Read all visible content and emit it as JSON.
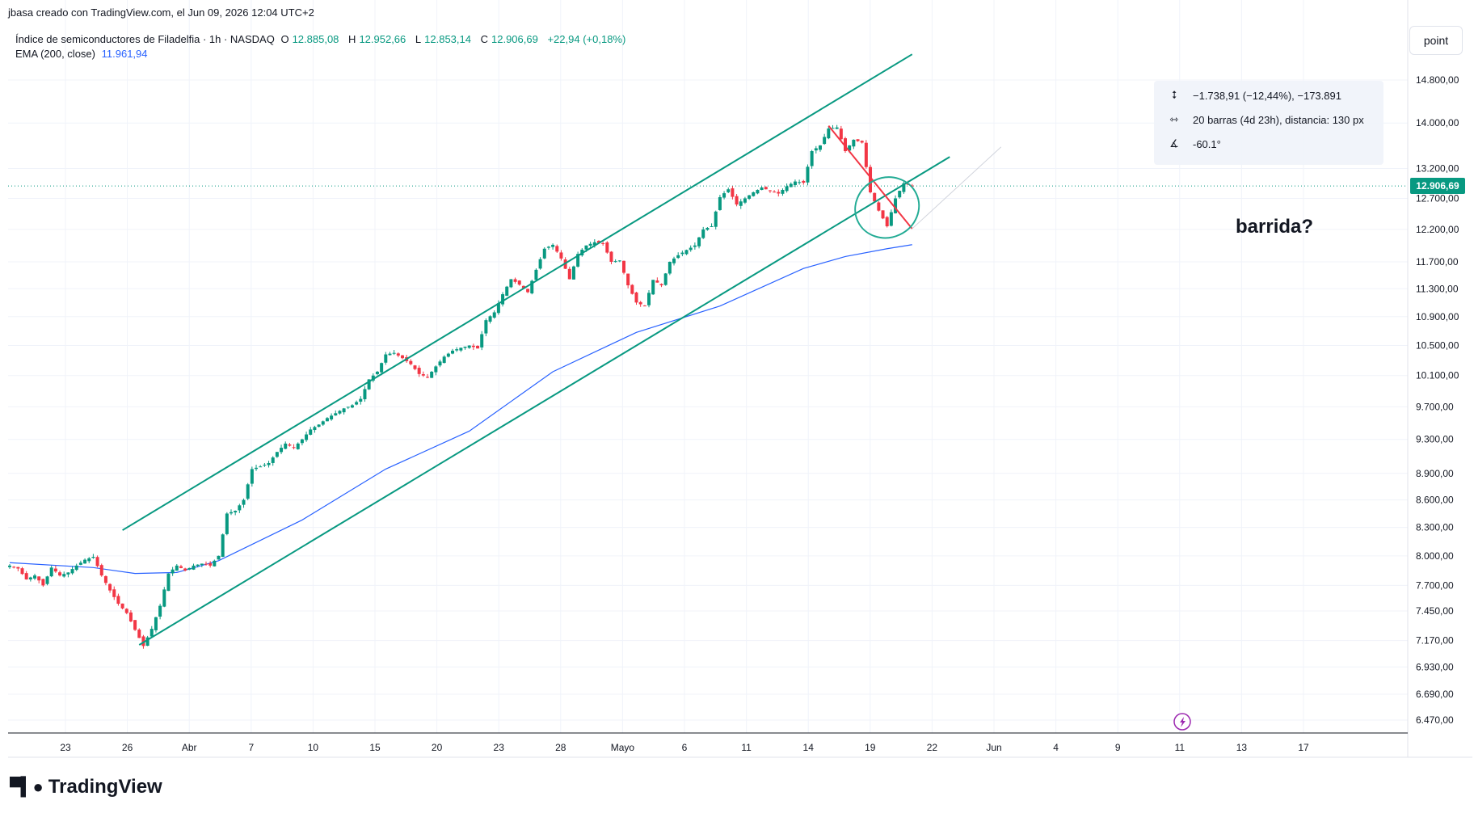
{
  "header": {
    "credit": "jbasa creado con TradingView.com, el Jun 09, 2026 12:04 UTC+2"
  },
  "legend": {
    "symbol": "Índice de semiconductores de Filadelfia · 1h · NASDAQ",
    "o_label": "O",
    "o": "12.885,08",
    "h_label": "H",
    "h": "12.952,66",
    "l_label": "L",
    "l": "12.853,14",
    "c_label": "C",
    "c": "12.906,69",
    "change": "+22,94 (+0,18%)",
    "ema_label": "EMA (200, close)",
    "ema_value": "11.961,94"
  },
  "toolbar": {
    "scale_button": "point"
  },
  "price_tag": "12.906,69",
  "measure": {
    "price_range": "−1.738,91 (−12,44%), −173.891",
    "bars_range": "20 barras (4d 23h), distancia: 130 px",
    "angle": "-60.1°"
  },
  "annotation": "barrida?",
  "logo": {
    "text": "TradingView"
  },
  "colors": {
    "up": "#089981",
    "down": "#f23645",
    "ema": "#2962ff",
    "channel": "#089981",
    "measure_line": "#f23645",
    "circle": "#22ab94"
  },
  "chart_data": {
    "type": "candlestick",
    "title": "Índice de semiconductores de Filadelfia · 1h · NASDAQ",
    "y_ticks": [
      "14.800,00",
      "14.000,00",
      "13.200,00",
      "12.700,00",
      "12.200,00",
      "11.700,00",
      "11.300,00",
      "10.900,00",
      "10.500,00",
      "10.100,00",
      "9.700,00",
      "9.300,00",
      "8.900,00",
      "8.600,00",
      "8.300,00",
      "8.000,00",
      "7.700,00",
      "7.450,00",
      "7.170,00",
      "6.930,00",
      "6.690,00",
      "6.470,00"
    ],
    "x_ticks": [
      "23",
      "26",
      "Abr",
      "7",
      "10",
      "15",
      "20",
      "23",
      "28",
      "Mayo",
      "6",
      "11",
      "14",
      "19",
      "22",
      "Jun",
      "4",
      "9",
      "11",
      "13",
      "17"
    ],
    "close_path": [
      {
        "i": 0,
        "v": 7900
      },
      {
        "i": 2,
        "v": 7870
      },
      {
        "i": 4,
        "v": 7760
      },
      {
        "i": 6,
        "v": 7800
      },
      {
        "i": 8,
        "v": 7700
      },
      {
        "i": 10,
        "v": 7880
      },
      {
        "i": 12,
        "v": 7800
      },
      {
        "i": 14,
        "v": 7830
      },
      {
        "i": 16,
        "v": 7900
      },
      {
        "i": 18,
        "v": 7960
      },
      {
        "i": 20,
        "v": 7990
      },
      {
        "i": 22,
        "v": 7800
      },
      {
        "i": 24,
        "v": 7650
      },
      {
        "i": 26,
        "v": 7520
      },
      {
        "i": 28,
        "v": 7430
      },
      {
        "i": 30,
        "v": 7270
      },
      {
        "i": 32,
        "v": 7120
      },
      {
        "i": 34,
        "v": 7280
      },
      {
        "i": 36,
        "v": 7500
      },
      {
        "i": 38,
        "v": 7820
      },
      {
        "i": 40,
        "v": 7900
      },
      {
        "i": 42,
        "v": 7850
      },
      {
        "i": 44,
        "v": 7900
      },
      {
        "i": 46,
        "v": 7920
      },
      {
        "i": 48,
        "v": 7900
      },
      {
        "i": 50,
        "v": 8000
      },
      {
        "i": 52,
        "v": 8450
      },
      {
        "i": 54,
        "v": 8480
      },
      {
        "i": 56,
        "v": 8600
      },
      {
        "i": 58,
        "v": 8950
      },
      {
        "i": 60,
        "v": 8980
      },
      {
        "i": 62,
        "v": 9020
      },
      {
        "i": 64,
        "v": 9150
      },
      {
        "i": 66,
        "v": 9250
      },
      {
        "i": 68,
        "v": 9200
      },
      {
        "i": 70,
        "v": 9300
      },
      {
        "i": 72,
        "v": 9420
      },
      {
        "i": 74,
        "v": 9480
      },
      {
        "i": 76,
        "v": 9560
      },
      {
        "i": 78,
        "v": 9620
      },
      {
        "i": 80,
        "v": 9680
      },
      {
        "i": 82,
        "v": 9720
      },
      {
        "i": 84,
        "v": 9800
      },
      {
        "i": 86,
        "v": 10050
      },
      {
        "i": 88,
        "v": 10150
      },
      {
        "i": 90,
        "v": 10380
      },
      {
        "i": 92,
        "v": 10400
      },
      {
        "i": 94,
        "v": 10330
      },
      {
        "i": 96,
        "v": 10250
      },
      {
        "i": 98,
        "v": 10120
      },
      {
        "i": 100,
        "v": 10080
      },
      {
        "i": 102,
        "v": 10220
      },
      {
        "i": 104,
        "v": 10350
      },
      {
        "i": 106,
        "v": 10430
      },
      {
        "i": 108,
        "v": 10470
      },
      {
        "i": 110,
        "v": 10500
      },
      {
        "i": 112,
        "v": 10460
      },
      {
        "i": 114,
        "v": 10850
      },
      {
        "i": 116,
        "v": 10960
      },
      {
        "i": 118,
        "v": 11220
      },
      {
        "i": 120,
        "v": 11440
      },
      {
        "i": 122,
        "v": 11360
      },
      {
        "i": 124,
        "v": 11250
      },
      {
        "i": 126,
        "v": 11580
      },
      {
        "i": 128,
        "v": 11900
      },
      {
        "i": 130,
        "v": 11960
      },
      {
        "i": 132,
        "v": 11750
      },
      {
        "i": 134,
        "v": 11440
      },
      {
        "i": 136,
        "v": 11820
      },
      {
        "i": 138,
        "v": 11950
      },
      {
        "i": 140,
        "v": 12000
      },
      {
        "i": 142,
        "v": 11980
      },
      {
        "i": 144,
        "v": 11700
      },
      {
        "i": 146,
        "v": 11720
      },
      {
        "i": 148,
        "v": 11350
      },
      {
        "i": 150,
        "v": 11100
      },
      {
        "i": 152,
        "v": 11050
      },
      {
        "i": 154,
        "v": 11430
      },
      {
        "i": 156,
        "v": 11350
      },
      {
        "i": 158,
        "v": 11700
      },
      {
        "i": 160,
        "v": 11800
      },
      {
        "i": 162,
        "v": 11880
      },
      {
        "i": 164,
        "v": 11950
      },
      {
        "i": 166,
        "v": 12200
      },
      {
        "i": 168,
        "v": 12250
      },
      {
        "i": 170,
        "v": 12720
      },
      {
        "i": 172,
        "v": 12850
      },
      {
        "i": 174,
        "v": 12600
      },
      {
        "i": 176,
        "v": 12700
      },
      {
        "i": 178,
        "v": 12800
      },
      {
        "i": 180,
        "v": 12880
      },
      {
        "i": 182,
        "v": 12820
      },
      {
        "i": 184,
        "v": 12780
      },
      {
        "i": 186,
        "v": 12900
      },
      {
        "i": 188,
        "v": 12980
      },
      {
        "i": 190,
        "v": 12960
      },
      {
        "i": 192,
        "v": 13500
      },
      {
        "i": 194,
        "v": 13600
      },
      {
        "i": 196,
        "v": 13900
      },
      {
        "i": 198,
        "v": 13920
      },
      {
        "i": 200,
        "v": 13500
      },
      {
        "i": 202,
        "v": 13700
      },
      {
        "i": 204,
        "v": 13650
      },
      {
        "i": 206,
        "v": 12800
      },
      {
        "i": 208,
        "v": 12500
      },
      {
        "i": 210,
        "v": 12250
      },
      {
        "i": 212,
        "v": 12700
      },
      {
        "i": 214,
        "v": 12950
      },
      {
        "i": 216,
        "v": 12906
      }
    ],
    "ema200": [
      {
        "i": 0,
        "v": 7930
      },
      {
        "i": 20,
        "v": 7880
      },
      {
        "i": 30,
        "v": 7820
      },
      {
        "i": 40,
        "v": 7830
      },
      {
        "i": 50,
        "v": 7950
      },
      {
        "i": 70,
        "v": 8380
      },
      {
        "i": 90,
        "v": 8950
      },
      {
        "i": 110,
        "v": 9400
      },
      {
        "i": 130,
        "v": 10150
      },
      {
        "i": 150,
        "v": 10680
      },
      {
        "i": 170,
        "v": 11050
      },
      {
        "i": 190,
        "v": 11600
      },
      {
        "i": 200,
        "v": 11780
      },
      {
        "i": 210,
        "v": 11900
      },
      {
        "i": 216,
        "v": 11961.94
      }
    ],
    "channel_upper": [
      {
        "i": 27,
        "v": 8270
      },
      {
        "i": 216,
        "v": 15300
      }
    ],
    "channel_lower": [
      {
        "i": 31,
        "v": 7130
      },
      {
        "i": 225,
        "v": 13400
      }
    ],
    "measure_line": [
      {
        "i": 196,
        "v": 13950
      },
      {
        "i": 216,
        "v": 12211
      }
    ]
  }
}
